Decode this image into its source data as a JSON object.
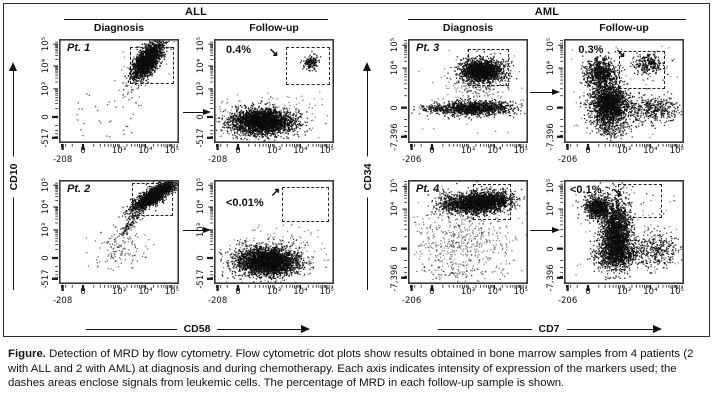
{
  "figure": {
    "groups": [
      {
        "title": "ALL",
        "columns": [
          "Diagnosis",
          "Follow-up"
        ],
        "y_marker": "CD10",
        "x_marker": "CD58"
      },
      {
        "title": "AML",
        "columns": [
          "Diagnosis",
          "Follow-up"
        ],
        "y_marker": "CD34",
        "x_marker": "CD7"
      }
    ]
  },
  "caption": {
    "label": "Figure.",
    "text": " Detection of MRD by flow cytometry. Flow cytometric dot plots show results obtained in bone marrow samples from 4 patients (2 with ALL and 2 with AML) at diagnosis and during chemotherapy. Each axis indicates intensity of expression of the markers used; the dashes areas enclose signals from leukemic cells. The percentage of MRD in each follow-up sample is shown."
  },
  "chart_data": {
    "type": "scatter",
    "title": "Detection of MRD by flow cytometry",
    "legend_position": "none",
    "grid": false,
    "axes": {
      "ALL": {
        "x_label": "CD58",
        "y_label": "CD10",
        "x_ticks": [
          {
            "label": "-208",
            "f": 0.03,
            "low": true
          },
          {
            "label": "0",
            "f": 0.2
          },
          {
            "label": "10³",
            "f": 0.5
          },
          {
            "label": "10⁴",
            "f": 0.72
          },
          {
            "label": "10⁵",
            "f": 0.94
          }
        ],
        "y_ticks": [
          {
            "label": "-517",
            "f": 0.05
          },
          {
            "label": "0",
            "f": 0.25
          },
          {
            "label": "10³",
            "f": 0.52
          },
          {
            "label": "10⁴",
            "f": 0.74
          },
          {
            "label": "10⁵",
            "f": 0.95
          }
        ]
      },
      "AML": {
        "x_label": "CD7",
        "y_label": "CD34",
        "x_ticks": [
          {
            "label": "-206",
            "f": 0.03,
            "low": true
          },
          {
            "label": "0",
            "f": 0.2
          },
          {
            "label": "10³",
            "f": 0.5
          },
          {
            "label": "10⁴",
            "f": 0.72
          },
          {
            "label": "10⁵",
            "f": 0.94
          }
        ],
        "y_ticks": [
          {
            "label": "-7,396",
            "f": 0.06
          },
          {
            "label": "0",
            "f": 0.34
          },
          {
            "label": "10⁴",
            "f": 0.72
          },
          {
            "label": "10⁵",
            "f": 0.94
          }
        ]
      }
    },
    "plots": [
      {
        "patient": "Pt. 1",
        "group": "ALL",
        "stage": "Diagnosis",
        "mrd": null,
        "gate": {
          "x0": 0.59,
          "x1": 0.96,
          "y0": 0.57,
          "y1": 0.92
        },
        "clusters": [
          {
            "fx": 0.73,
            "fy": 0.8,
            "sx": 0.1,
            "sy": 0.042,
            "rot": 60,
            "n": 1900
          },
          {
            "fx": 0.72,
            "fy": 0.78,
            "sx": 0.16,
            "sy": 0.08,
            "rot": 60,
            "n": 130,
            "alpha": 0.55
          },
          {
            "u": true,
            "x0": 0.12,
            "x1": 0.66,
            "y0": 0.06,
            "y1": 0.52,
            "n": 34,
            "alpha": 0.7
          }
        ]
      },
      {
        "patient": null,
        "group": "ALL",
        "stage": "Follow-up",
        "mrd": "0.4%",
        "annotation": {
          "tx": 0.1,
          "ty": 5,
          "dir": "se",
          "ax": 0.455,
          "ay": 8
        },
        "gate": {
          "x0": 0.6,
          "x1": 0.97,
          "y0": 0.56,
          "y1": 0.92
        },
        "clusters": [
          {
            "fx": 0.4,
            "fy": 0.21,
            "sx": 0.125,
            "sy": 0.06,
            "n": 2700
          },
          {
            "fx": 0.42,
            "fy": 0.23,
            "sx": 0.19,
            "sy": 0.1,
            "n": 330,
            "alpha": 0.5
          },
          {
            "fx": 0.8,
            "fy": 0.78,
            "sx": 0.032,
            "sy": 0.038,
            "n": 150
          },
          {
            "u": true,
            "x0": 0.1,
            "x1": 0.9,
            "y0": 0.05,
            "y1": 0.5,
            "n": 25,
            "alpha": 0.5
          }
        ]
      },
      {
        "patient": "Pt. 2",
        "group": "ALL",
        "stage": "Diagnosis",
        "mrd": null,
        "gate": {
          "x0": 0.61,
          "x1": 0.95,
          "y0": 0.65,
          "y1": 0.97
        },
        "clusters": [
          {
            "fx": 0.79,
            "fy": 0.86,
            "sx": 0.11,
            "sy": 0.032,
            "rot": 38,
            "n": 1800
          },
          {
            "fx": 0.6,
            "fy": 0.6,
            "sx": 0.1,
            "sy": 0.02,
            "rot": 55,
            "n": 140,
            "alpha": 0.7
          },
          {
            "fx": 0.5,
            "fy": 0.38,
            "sx": 0.09,
            "sy": 0.11,
            "n": 110,
            "alpha": 0.6
          },
          {
            "u": true,
            "x0": 0.2,
            "x1": 0.75,
            "y0": 0.06,
            "y1": 0.5,
            "n": 30,
            "alpha": 0.6
          }
        ]
      },
      {
        "patient": null,
        "group": "ALL",
        "stage": "Follow-up",
        "mrd": "<0.01%",
        "annotation": {
          "tx": 0.1,
          "ty": 17,
          "dir": "ne",
          "ax": 0.47,
          "ay": 7
        },
        "gate": {
          "x0": 0.57,
          "x1": 0.96,
          "y0": 0.6,
          "y1": 0.93
        },
        "clusters": [
          {
            "fx": 0.44,
            "fy": 0.22,
            "sx": 0.125,
            "sy": 0.065,
            "n": 2700
          },
          {
            "fx": 0.46,
            "fy": 0.27,
            "sx": 0.19,
            "sy": 0.11,
            "n": 380,
            "alpha": 0.5
          },
          {
            "u": true,
            "x0": 0.12,
            "x1": 0.92,
            "y0": 0.05,
            "y1": 0.55,
            "n": 40,
            "alpha": 0.5
          }
        ]
      },
      {
        "patient": "Pt. 3",
        "group": "AML",
        "stage": "Diagnosis",
        "mrd": null,
        "gate": {
          "x0": 0.5,
          "x1": 0.84,
          "y0": 0.55,
          "y1": 0.9
        },
        "clusters": [
          {
            "fx": 0.61,
            "fy": 0.7,
            "sx": 0.09,
            "sy": 0.055,
            "n": 1700
          },
          {
            "fx": 0.55,
            "fy": 0.34,
            "sx": 0.16,
            "sy": 0.035,
            "n": 1100
          },
          {
            "fx": 0.22,
            "fy": 0.335,
            "sx": 0.07,
            "sy": 0.018,
            "n": 110,
            "alpha": 0.8
          },
          {
            "fx": 0.56,
            "fy": 0.52,
            "sx": 0.14,
            "sy": 0.09,
            "n": 160,
            "alpha": 0.5
          },
          {
            "u": true,
            "x0": 0.06,
            "x1": 0.95,
            "y0": 0.1,
            "y1": 0.9,
            "n": 45,
            "alpha": 0.5
          }
        ]
      },
      {
        "patient": null,
        "group": "AML",
        "stage": "Follow-up",
        "mrd": "0.3%",
        "annotation": {
          "tx": 0.12,
          "ty": 5,
          "dir": "se",
          "ax": 0.43,
          "ay": 9
        },
        "gate": {
          "x0": 0.46,
          "x1": 0.84,
          "y0": 0.52,
          "y1": 0.88
        },
        "clusters": [
          {
            "fx": 0.37,
            "fy": 0.38,
            "sx": 0.075,
            "sy": 0.1,
            "n": 1900
          },
          {
            "fx": 0.3,
            "fy": 0.68,
            "sx": 0.065,
            "sy": 0.07,
            "n": 700
          },
          {
            "fx": 0.73,
            "fy": 0.33,
            "sx": 0.11,
            "sy": 0.07,
            "n": 420,
            "alpha": 0.85
          },
          {
            "fx": 0.7,
            "fy": 0.76,
            "sx": 0.06,
            "sy": 0.05,
            "n": 260
          },
          {
            "fx": 0.42,
            "fy": 0.14,
            "sx": 0.08,
            "sy": 0.05,
            "n": 160,
            "alpha": 0.8
          },
          {
            "u": true,
            "x0": 0.05,
            "x1": 0.95,
            "y0": 0.05,
            "y1": 0.95,
            "n": 70,
            "alpha": 0.5
          }
        ]
      },
      {
        "patient": "Pt. 4",
        "group": "AML",
        "stage": "Diagnosis",
        "mrd": null,
        "gate": {
          "x0": 0.54,
          "x1": 0.86,
          "y0": 0.62,
          "y1": 0.96
        },
        "clusters": [
          {
            "fx": 0.6,
            "fy": 0.79,
            "sx": 0.125,
            "sy": 0.048,
            "rot": 6,
            "n": 2100
          },
          {
            "fx": 0.34,
            "fy": 0.79,
            "sx": 0.06,
            "sy": 0.05,
            "n": 260,
            "alpha": 0.7
          },
          {
            "fx": 0.44,
            "fy": 0.45,
            "sx": 0.22,
            "sy": 0.16,
            "n": 520,
            "alpha": 0.5
          },
          {
            "fx": 0.42,
            "fy": 0.12,
            "sx": 0.2,
            "sy": 0.05,
            "n": 90,
            "alpha": 0.6
          },
          {
            "u": true,
            "x0": 0.05,
            "x1": 0.95,
            "y0": 0.05,
            "y1": 0.95,
            "n": 40,
            "alpha": 0.45
          }
        ]
      },
      {
        "patient": null,
        "group": "AML",
        "stage": "Follow-up",
        "mrd": "<0.1%",
        "annotation": {
          "tx": 0.05,
          "ty": 4,
          "dir": "se",
          "ax": 0.4,
          "ay": 7
        },
        "gate": {
          "x0": 0.45,
          "x1": 0.82,
          "y0": 0.63,
          "y1": 0.96
        },
        "clusters": [
          {
            "fx": 0.43,
            "fy": 0.5,
            "sx": 0.06,
            "sy": 0.16,
            "n": 1900
          },
          {
            "fx": 0.43,
            "fy": 0.3,
            "sx": 0.095,
            "sy": 0.07,
            "n": 750
          },
          {
            "fx": 0.28,
            "fy": 0.74,
            "sx": 0.055,
            "sy": 0.06,
            "n": 700
          },
          {
            "fx": 0.77,
            "fy": 0.33,
            "sx": 0.09,
            "sy": 0.085,
            "n": 360,
            "alpha": 0.8
          },
          {
            "u": true,
            "x0": 0.05,
            "x1": 0.95,
            "y0": 0.05,
            "y1": 0.95,
            "n": 80,
            "alpha": 0.5
          },
          {
            "u": true,
            "x0": 0.58,
            "x1": 0.85,
            "y0": 0.66,
            "y1": 0.9,
            "n": 6,
            "alpha": 0.8
          }
        ]
      }
    ]
  }
}
